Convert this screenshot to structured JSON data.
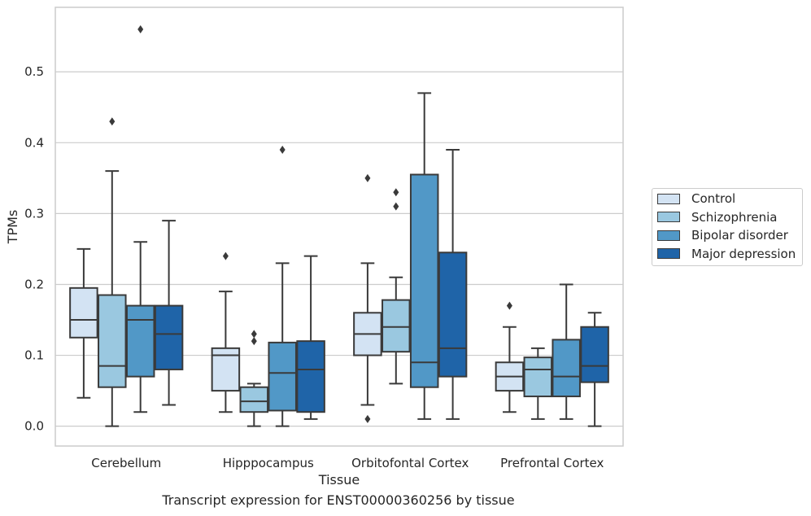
{
  "chart_data": {
    "type": "box",
    "caption": "Transcript expression for ENST00000360256 by tissue",
    "xlabel": "Tissue",
    "ylabel": "TPMs",
    "ylim": [
      -0.028,
      0.591
    ],
    "yticks": [
      0.0,
      0.1,
      0.2,
      0.3,
      0.4,
      0.5
    ],
    "grid": true,
    "legend_position": "right",
    "categories": [
      "Cerebellum",
      "Hipppocampus",
      "Orbitofontal Cortex",
      "Prefrontal Cortex"
    ],
    "series": [
      {
        "name": "Control",
        "color": "#d3e3f3",
        "boxes": [
          {
            "whislo": 0.04,
            "q1": 0.125,
            "med": 0.15,
            "q3": 0.195,
            "whishi": 0.25,
            "fliers": []
          },
          {
            "whislo": 0.02,
            "q1": 0.05,
            "med": 0.1,
            "q3": 0.11,
            "whishi": 0.19,
            "fliers": [
              0.24
            ]
          },
          {
            "whislo": 0.03,
            "q1": 0.1,
            "med": 0.13,
            "q3": 0.16,
            "whishi": 0.23,
            "fliers": [
              0.01,
              0.35
            ]
          },
          {
            "whislo": 0.02,
            "q1": 0.05,
            "med": 0.07,
            "q3": 0.09,
            "whishi": 0.14,
            "fliers": [
              0.17
            ]
          }
        ]
      },
      {
        "name": "Schizophrenia",
        "color": "#9ac8e0",
        "boxes": [
          {
            "whislo": 0.0,
            "q1": 0.055,
            "med": 0.085,
            "q3": 0.185,
            "whishi": 0.36,
            "fliers": [
              0.43
            ]
          },
          {
            "whislo": 0.0,
            "q1": 0.02,
            "med": 0.035,
            "q3": 0.055,
            "whishi": 0.06,
            "fliers": [
              0.12,
              0.13
            ]
          },
          {
            "whislo": 0.06,
            "q1": 0.105,
            "med": 0.14,
            "q3": 0.178,
            "whishi": 0.21,
            "fliers": [
              0.31,
              0.33
            ]
          },
          {
            "whislo": 0.01,
            "q1": 0.042,
            "med": 0.08,
            "q3": 0.097,
            "whishi": 0.11,
            "fliers": []
          }
        ]
      },
      {
        "name": "Bipolar disorder",
        "color": "#5198c7",
        "boxes": [
          {
            "whislo": 0.02,
            "q1": 0.07,
            "med": 0.15,
            "q3": 0.17,
            "whishi": 0.26,
            "fliers": [
              0.56
            ]
          },
          {
            "whislo": 0.0,
            "q1": 0.022,
            "med": 0.075,
            "q3": 0.118,
            "whishi": 0.23,
            "fliers": [
              0.39
            ]
          },
          {
            "whislo": 0.01,
            "q1": 0.055,
            "med": 0.09,
            "q3": 0.355,
            "whishi": 0.47,
            "fliers": []
          },
          {
            "whislo": 0.01,
            "q1": 0.042,
            "med": 0.07,
            "q3": 0.122,
            "whishi": 0.2,
            "fliers": []
          }
        ]
      },
      {
        "name": "Major depression",
        "color": "#1f64a8",
        "boxes": [
          {
            "whislo": 0.03,
            "q1": 0.08,
            "med": 0.13,
            "q3": 0.17,
            "whishi": 0.29,
            "fliers": []
          },
          {
            "whislo": 0.01,
            "q1": 0.02,
            "med": 0.08,
            "q3": 0.12,
            "whishi": 0.24,
            "fliers": []
          },
          {
            "whislo": 0.01,
            "q1": 0.07,
            "med": 0.11,
            "q3": 0.245,
            "whishi": 0.39,
            "fliers": []
          },
          {
            "whislo": 0.0,
            "q1": 0.062,
            "med": 0.085,
            "q3": 0.14,
            "whishi": 0.16,
            "fliers": []
          }
        ]
      }
    ]
  }
}
